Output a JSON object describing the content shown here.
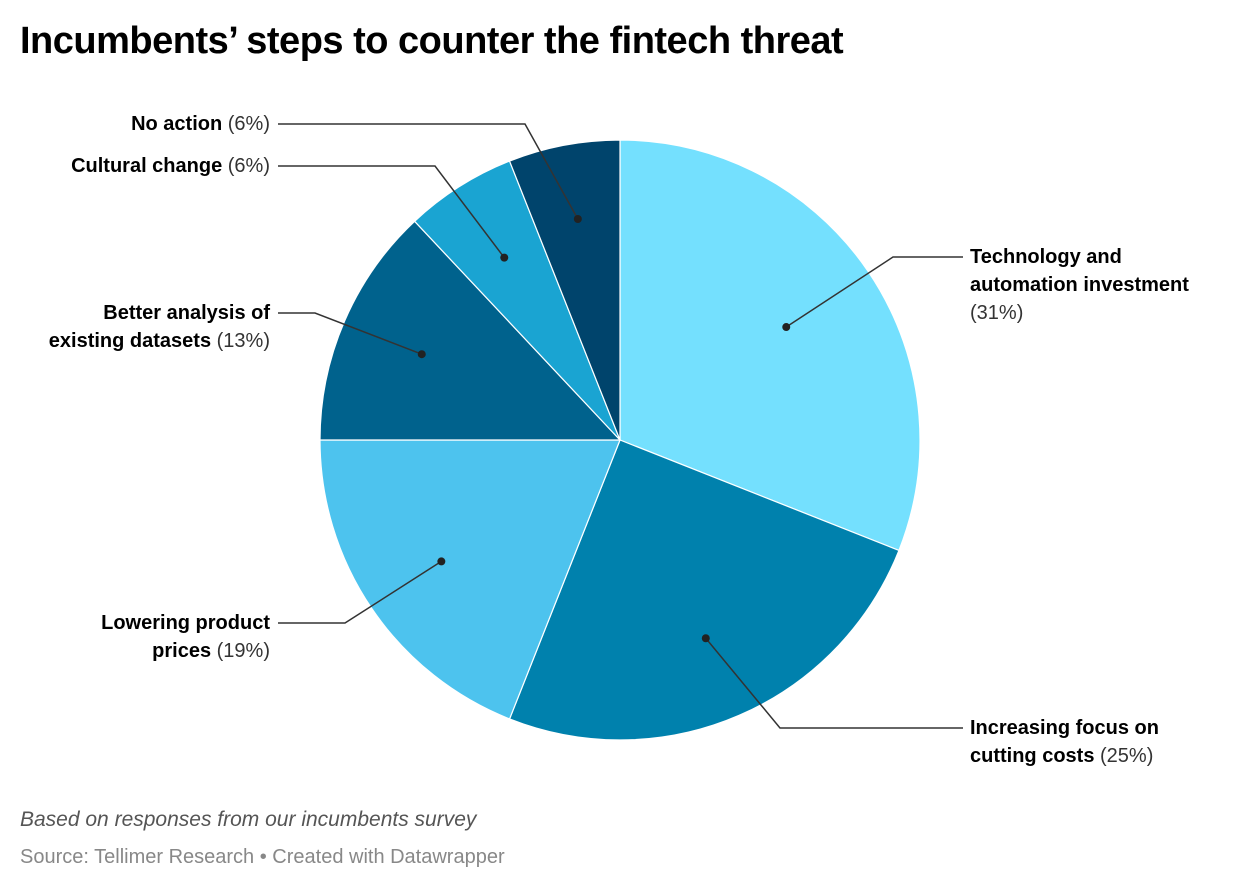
{
  "title": "Incumbents’ steps to counter the fintech threat",
  "chart_data": {
    "type": "pie",
    "title": "Incumbents’ steps to counter the fintech threat",
    "slices": [
      {
        "label": "Technology and automation investment",
        "value": 31,
        "value_label": "(31%)",
        "color": "#74e0fe"
      },
      {
        "label": "Increasing focus on cutting costs",
        "value": 25,
        "value_label": "(25%)",
        "color": "#0081ad"
      },
      {
        "label": "Lowering product prices",
        "value": 19,
        "value_label": "(19%)",
        "color": "#4dc3ee"
      },
      {
        "label": "Better analysis of existing datasets",
        "value": 13,
        "value_label": "(13%)",
        "color": "#00628d"
      },
      {
        "label": "Cultural change",
        "value": 6,
        "value_label": "(6%)",
        "color": "#1aa4d2"
      },
      {
        "label": "No action",
        "value": 6,
        "value_label": "(6%)",
        "color": "#00446c"
      }
    ]
  },
  "labels": {
    "technology": {
      "line1": "Technology and",
      "line2": "automation investment",
      "pct": "(31%)"
    },
    "costs": {
      "line1": "Increasing focus on",
      "line2": "cutting costs",
      "pct": "(25%)"
    },
    "prices": {
      "line1": "Lowering product",
      "line2": "prices",
      "pct": "(19%)"
    },
    "analysis": {
      "line1": "Better analysis of",
      "line2": "existing datasets",
      "pct": "(13%)"
    },
    "cultural": {
      "line1": "Cultural change",
      "pct": "(6%)"
    },
    "noaction": {
      "line1": "No action",
      "pct": "(6%)"
    }
  },
  "note": "Based on responses from our incumbents survey",
  "source": "Source: Tellimer Research • Created with Datawrapper"
}
